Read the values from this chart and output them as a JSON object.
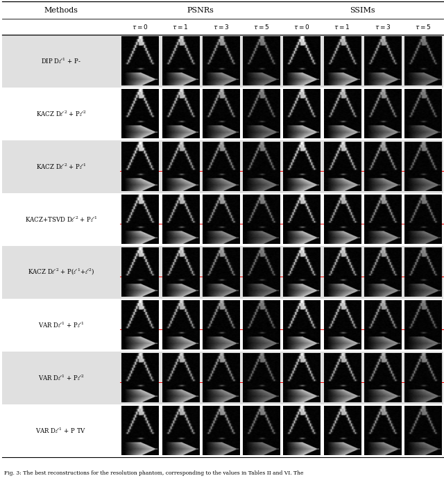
{
  "caption": "Fig. 3: The best reconstructions for the resolution phantom, corresponding to the values in Tables II and VI. The",
  "methods": [
    "DIP D$\\ell^1$ + P-",
    "KACZ D$\\ell^2$ + P$\\ell^2$",
    "KACZ D$\\ell^2$ + P$\\ell^1$",
    "KACZ+TSVD D$\\ell^2$ + P$\\ell^1$",
    "KACZ D$\\ell^2$ + P($\\ell^1$+$\\ell^2$)",
    "VAR D$\\ell^1$ + P$\\ell^1$",
    "VAR D$\\ell^1$ + P$\\ell^2$",
    "VAR D$\\ell^1$ + P TV"
  ],
  "n_methods": 8,
  "n_img_cols": 8,
  "shaded_rows": [
    0,
    2,
    4,
    6
  ],
  "red_line_rows": [
    2,
    3,
    4,
    5,
    6
  ],
  "background_color": "#ffffff",
  "shaded_color": "#e0e0e0",
  "fig_width": 6.4,
  "fig_height": 6.98,
  "dpi": 100
}
